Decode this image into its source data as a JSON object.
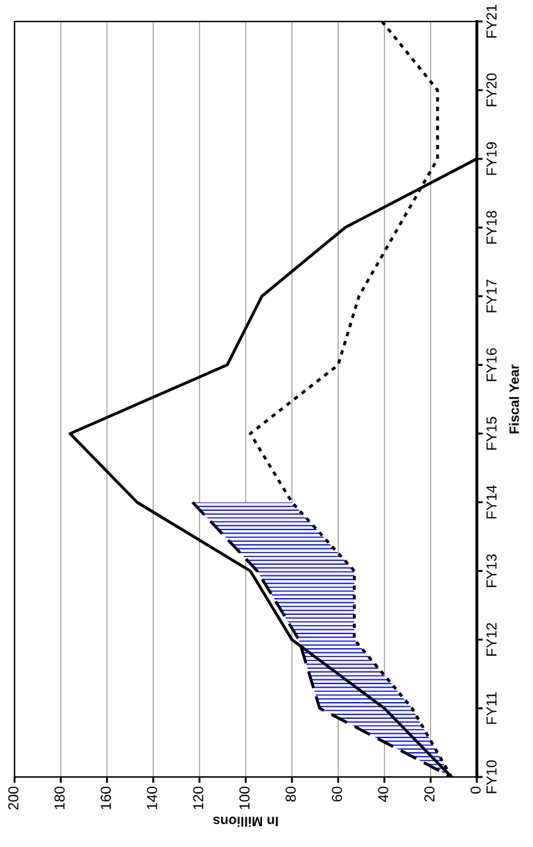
{
  "chart_data": {
    "type": "line",
    "orientation": "horizontal",
    "xlabel": "In Millions",
    "ylabel": "Fiscal Year",
    "categories": [
      "FY21",
      "FY20",
      "FY19",
      "FY18",
      "FY17",
      "FY16",
      "FY15",
      "FY14",
      "FY13",
      "FY12",
      "FY11",
      "FY10"
    ],
    "xlim": [
      200,
      0
    ],
    "xticks": [
      0,
      20,
      40,
      60,
      80,
      100,
      120,
      140,
      160,
      180,
      200
    ],
    "grid": "x",
    "series": [
      {
        "color": "#000000",
        "line_style": "solid",
        "values": [
          null,
          null,
          0,
          57,
          93,
          108,
          176,
          147,
          98,
          80,
          40,
          11
        ]
      },
      {
        "color": "#000000",
        "line_style": "dotted",
        "values": [
          41,
          17,
          17,
          34,
          51,
          60,
          98,
          80,
          53,
          53,
          28,
          11
        ]
      },
      {
        "color": "#000000",
        "line_style": "dashed",
        "values": [
          null,
          null,
          null,
          null,
          null,
          null,
          null,
          123,
          95,
          77,
          68,
          11
        ],
        "lower": [
          null,
          null,
          null,
          null,
          null,
          null,
          null,
          80,
          53,
          53,
          28,
          11
        ],
        "upper": [
          null,
          null,
          null,
          null,
          null,
          null,
          null,
          123,
          95,
          77,
          68,
          11
        ]
      }
    ]
  }
}
